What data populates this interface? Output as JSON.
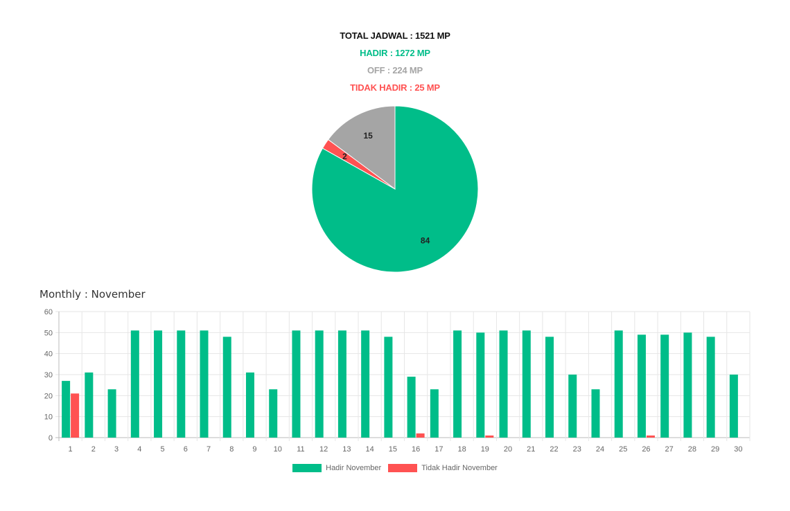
{
  "summary": {
    "total": "TOTAL JADWAL : 1521 MP",
    "hadir": "HADIR : 1272 MP",
    "off": "OFF : 224 MP",
    "tidak_hadir": "TIDAK HADIR : 25 MP"
  },
  "colors": {
    "hadir": "#00bd89",
    "off": "#a5a5a5",
    "tidak_hadir": "#ff5252"
  },
  "chart_data": [
    {
      "type": "pie",
      "slices": [
        {
          "label": "84",
          "value": 84,
          "color": "#00bd89"
        },
        {
          "label": "2",
          "value": 2,
          "color": "#ff5252"
        },
        {
          "label": "15",
          "value": 15,
          "color": "#a5a5a5"
        }
      ]
    },
    {
      "type": "bar",
      "title": "Monthly : November",
      "categories": [
        "1",
        "2",
        "3",
        "4",
        "5",
        "6",
        "7",
        "8",
        "9",
        "10",
        "11",
        "12",
        "13",
        "14",
        "15",
        "16",
        "17",
        "18",
        "19",
        "20",
        "21",
        "22",
        "23",
        "24",
        "25",
        "26",
        "27",
        "28",
        "29",
        "30"
      ],
      "series": [
        {
          "name": "Hadir November",
          "color": "#00bd89",
          "values": [
            27,
            31,
            23,
            51,
            51,
            51,
            51,
            48,
            31,
            23,
            51,
            51,
            51,
            51,
            48,
            29,
            23,
            51,
            50,
            51,
            51,
            48,
            30,
            23,
            51,
            49,
            49,
            50,
            48,
            30
          ]
        },
        {
          "name": "Tidak Hadir November",
          "color": "#ff5252",
          "values": [
            21,
            0,
            0,
            0,
            0,
            0,
            0,
            0,
            0,
            0,
            0,
            0,
            0,
            0,
            0,
            2,
            0,
            0,
            1,
            0,
            0,
            0,
            0,
            0,
            0,
            1,
            0,
            0,
            0,
            0
          ]
        }
      ],
      "yticks": [
        0,
        10,
        20,
        30,
        40,
        50,
        60
      ],
      "ylim": [
        0,
        60
      ],
      "grid": true,
      "legend": "bottom"
    }
  ]
}
